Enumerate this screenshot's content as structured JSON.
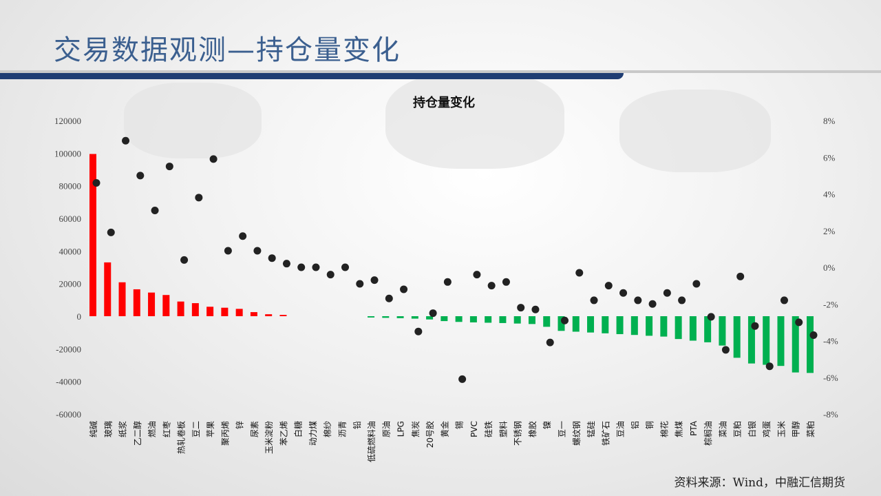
{
  "header": {
    "title": "交易数据观测—持仓量变化"
  },
  "footer": {
    "source": "资料来源：Wind，中融汇信期货"
  },
  "colors": {
    "title": "#3b5f8f",
    "title_bar": "#1f3d73",
    "positive_bar": "#ff0000",
    "negative_bar": "#00b050",
    "dot": "#222222"
  },
  "chart_data": {
    "type": "bar",
    "title": "持仓量变化",
    "categories": [
      "纯碱",
      "玻璃",
      "纸浆",
      "乙二醇",
      "燃油",
      "红枣",
      "热轧卷板",
      "豆二",
      "苹果",
      "聚丙烯",
      "锌",
      "尿素",
      "玉米淀粉",
      "苯乙烯",
      "白糖",
      "动力煤",
      "棉纱",
      "沥青",
      "铅",
      "低硫燃料油",
      "原油",
      "LPG",
      "焦炭",
      "20号胶",
      "黄金",
      "锡",
      "PVC",
      "硅铁",
      "塑料",
      "不锈钢",
      "橡胶",
      "镍",
      "豆一",
      "螺纹钢",
      "锰硅",
      "铁矿石",
      "豆油",
      "铝",
      "铜",
      "棉花",
      "焦煤",
      "PTA",
      "棕榈油",
      "菜油",
      "豆粕",
      "白银",
      "鸡蛋",
      "玉米",
      "甲醇",
      "菜粕"
    ],
    "series": [
      {
        "axis": "left",
        "mark": "bar",
        "values": [
          99500,
          33000,
          20800,
          16500,
          14500,
          13000,
          9000,
          8000,
          5800,
          5200,
          4500,
          2500,
          1200,
          800,
          0,
          0,
          0,
          0,
          0,
          -800,
          -1000,
          -1200,
          -1500,
          -2000,
          -3000,
          -3500,
          -3800,
          -4000,
          -4200,
          -4500,
          -4800,
          -6500,
          -9000,
          -9500,
          -10000,
          -10500,
          -11000,
          -11500,
          -12000,
          -12500,
          -14000,
          -15000,
          -16000,
          -18000,
          -25500,
          -29000,
          -29800,
          -30500,
          -34500,
          -34800
        ]
      },
      {
        "axis": "right",
        "mark": "dot",
        "unit": "%",
        "values": [
          4.6,
          1.9,
          6.9,
          5.0,
          3.1,
          5.5,
          0.4,
          3.8,
          5.9,
          0.9,
          1.7,
          0.9,
          0.5,
          0.2,
          0.0,
          0.0,
          -0.4,
          0.0,
          -0.9,
          -0.7,
          -1.7,
          -1.2,
          -3.5,
          -2.5,
          -0.8,
          -6.1,
          -0.4,
          -1.0,
          -0.8,
          -2.2,
          -2.3,
          -4.1,
          -2.9,
          -0.3,
          -1.8,
          -1.0,
          -1.4,
          -1.8,
          -2.0,
          -1.4,
          -1.8,
          -0.9,
          -2.7,
          -4.5,
          -0.5,
          -3.2,
          -5.4,
          -1.8,
          -3.0,
          -3.7
        ]
      }
    ],
    "y_left": {
      "min": -60000,
      "max": 120000,
      "step": 20000,
      "ticks": [
        "-60000",
        "-40000",
        "-20000",
        "0",
        "20000",
        "40000",
        "60000",
        "80000",
        "100000",
        "120000"
      ]
    },
    "y_right": {
      "min": -8,
      "max": 8,
      "step": 2,
      "ticks": [
        "-8%",
        "-6%",
        "-4%",
        "-2%",
        "0%",
        "2%",
        "4%",
        "6%",
        "8%"
      ]
    },
    "legend": "none",
    "grid": false
  }
}
